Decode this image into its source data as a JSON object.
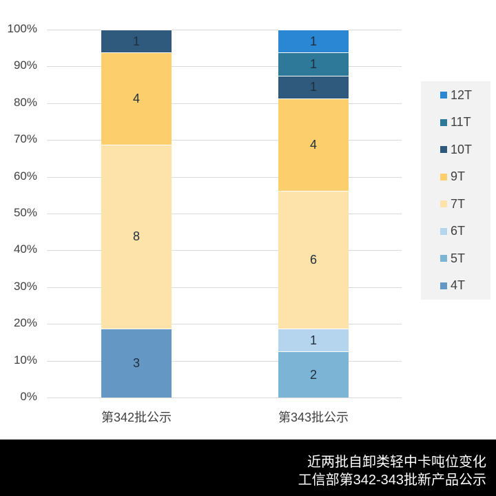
{
  "chart_data": {
    "type": "bar",
    "stacked": true,
    "percent_stacked": true,
    "title": "近两批自卸类轻中卡吨位变化",
    "subtitle": "工信部第342-343批新产品公示",
    "xlabel": "",
    "ylabel": "",
    "ylim": [
      0,
      100
    ],
    "y_ticks": [
      "0%",
      "10%",
      "20%",
      "30%",
      "40%",
      "50%",
      "60%",
      "70%",
      "80%",
      "90%",
      "100%"
    ],
    "grid": true,
    "legend_position": "right",
    "categories": [
      "第342批公示",
      "第343批公示"
    ],
    "series": [
      {
        "name": "4T",
        "color": "#6497c4",
        "values": [
          3,
          0
        ]
      },
      {
        "name": "5T",
        "color": "#7bb4d4",
        "values": [
          0,
          2
        ]
      },
      {
        "name": "6T",
        "color": "#b5d5ef",
        "values": [
          0,
          1
        ]
      },
      {
        "name": "7T",
        "color": "#fde3a9",
        "values": [
          8,
          6
        ]
      },
      {
        "name": "9T",
        "color": "#fccf6c",
        "values": [
          4,
          4
        ]
      },
      {
        "name": "10T",
        "color": "#2f5a7d",
        "values": [
          1,
          1
        ]
      },
      {
        "name": "11T",
        "color": "#2e7899",
        "values": [
          0,
          1
        ]
      },
      {
        "name": "12T",
        "color": "#2a87d4",
        "values": [
          0,
          1
        ]
      }
    ]
  },
  "axis": {
    "y_labels": [
      "0%",
      "10%",
      "20%",
      "30%",
      "40%",
      "50%",
      "60%",
      "70%",
      "80%",
      "90%",
      "100%"
    ]
  },
  "legend": {
    "items": [
      {
        "label": "12T",
        "color": "#2a87d4"
      },
      {
        "label": "11T",
        "color": "#2e7899"
      },
      {
        "label": "10T",
        "color": "#2f5a7d"
      },
      {
        "label": "9T",
        "color": "#fccf6c"
      },
      {
        "label": "7T",
        "color": "#fde3a9"
      },
      {
        "label": "6T",
        "color": "#b5d5ef"
      },
      {
        "label": "5T",
        "color": "#7bb4d4"
      },
      {
        "label": "4T",
        "color": "#6497c4"
      }
    ]
  },
  "footer": {
    "line1": "近两批自卸类轻中卡吨位变化",
    "line2": "工信部第342-343批新产品公示"
  }
}
